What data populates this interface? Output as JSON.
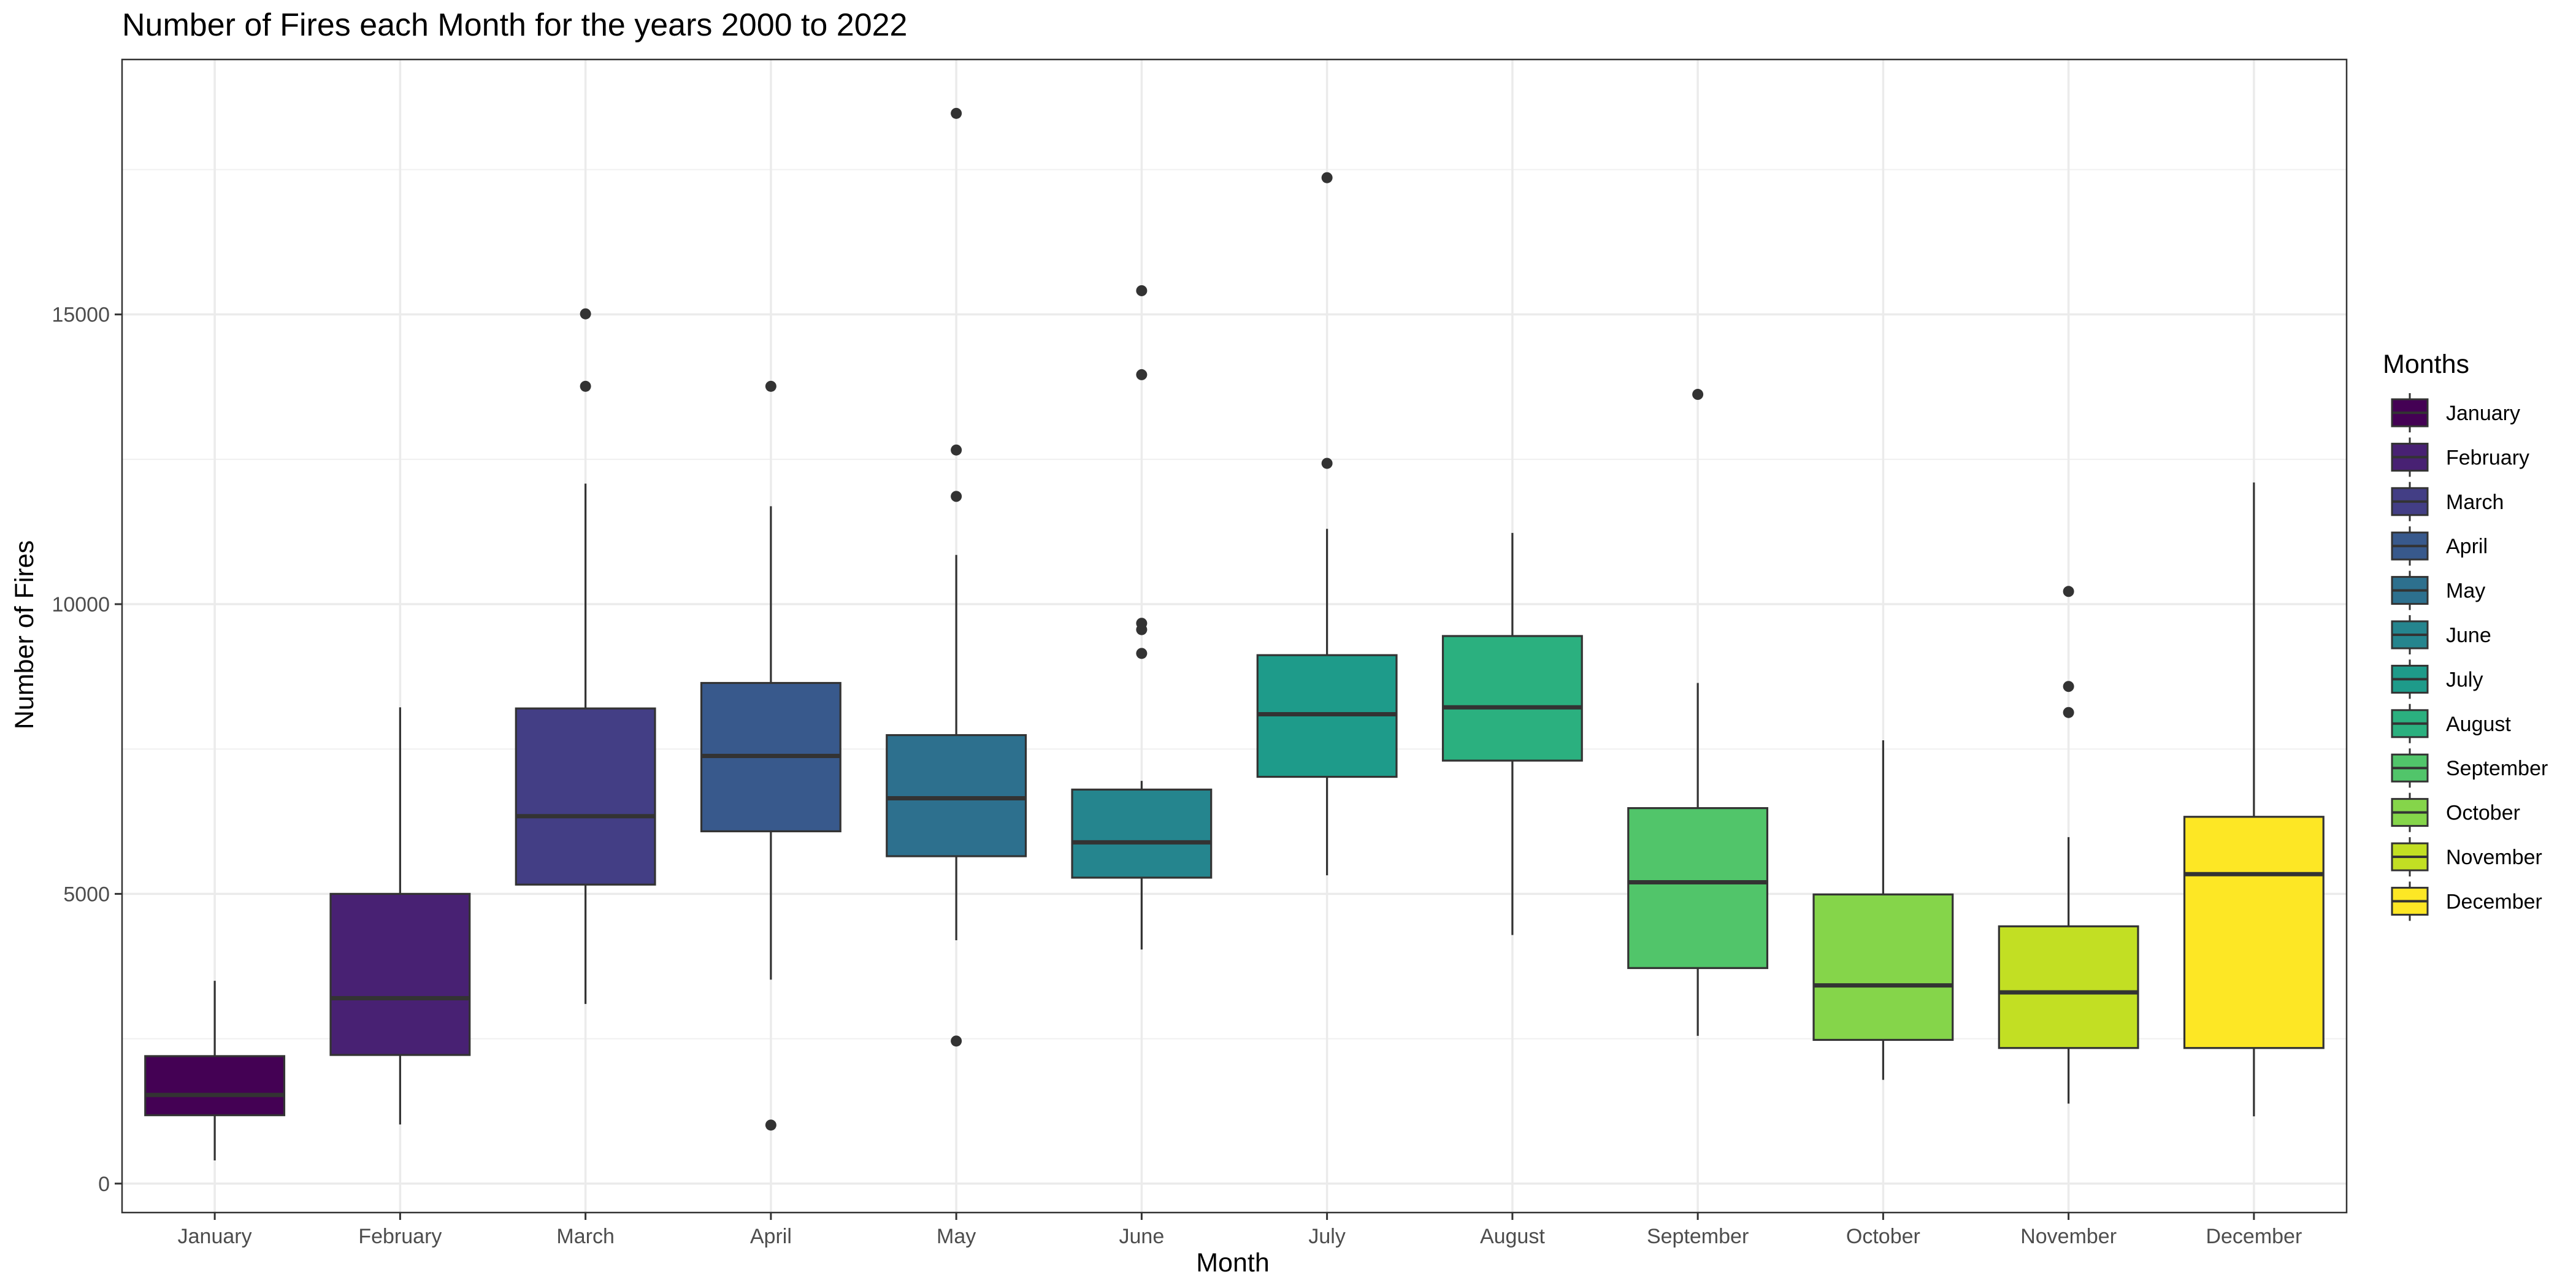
{
  "chart_data": {
    "type": "boxplot",
    "title": "Number of Fires each Month for the years 2000 to 2022",
    "xlabel": "Month",
    "ylabel": "Number of Fires",
    "ylim": [
      -500,
      19400
    ],
    "y_ticks": [
      0,
      5000,
      10000,
      15000
    ],
    "y_tick_labels": [
      "0",
      "5000",
      "10000",
      "15000"
    ],
    "grid": true,
    "legend": {
      "title": "Months",
      "placement": "right"
    },
    "categories": [
      "January",
      "February",
      "March",
      "April",
      "May",
      "June",
      "July",
      "August",
      "September",
      "October",
      "November",
      "December"
    ],
    "colors": [
      "#440154",
      "#482173",
      "#433E85",
      "#38598C",
      "#2D708E",
      "#25858E",
      "#1E9B8A",
      "#2BB07F",
      "#51C56A",
      "#85D54A",
      "#C2DF23",
      "#FDE725"
    ],
    "boxes": [
      {
        "category": "January",
        "whisker_low": 400,
        "q1": 1180,
        "median": 1530,
        "q3": 2200,
        "whisker_high": 3500,
        "outliers": []
      },
      {
        "category": "February",
        "whisker_low": 1020,
        "q1": 2220,
        "median": 3200,
        "q3": 5000,
        "whisker_high": 8220,
        "outliers": []
      },
      {
        "category": "March",
        "whisker_low": 3100,
        "q1": 5160,
        "median": 6340,
        "q3": 8200,
        "whisker_high": 12080,
        "outliers": [
          13760,
          15010
        ]
      },
      {
        "category": "April",
        "whisker_low": 3520,
        "q1": 6080,
        "median": 7380,
        "q3": 8640,
        "whisker_high": 11690,
        "outliers": [
          1010,
          13760
        ]
      },
      {
        "category": "May",
        "whisker_low": 4200,
        "q1": 5650,
        "median": 6650,
        "q3": 7740,
        "whisker_high": 10850,
        "outliers": [
          2460,
          11860,
          12660,
          18470
        ]
      },
      {
        "category": "June",
        "whisker_low": 4040,
        "q1": 5280,
        "median": 5890,
        "q3": 6800,
        "whisker_high": 6950,
        "outliers": [
          9150,
          9560,
          9670,
          13960,
          15410
        ]
      },
      {
        "category": "July",
        "whisker_low": 5320,
        "q1": 7020,
        "median": 8100,
        "q3": 9120,
        "whisker_high": 11300,
        "outliers": [
          12430,
          17360
        ]
      },
      {
        "category": "August",
        "whisker_low": 4290,
        "q1": 7300,
        "median": 8220,
        "q3": 9450,
        "whisker_high": 11230,
        "outliers": []
      },
      {
        "category": "September",
        "whisker_low": 2550,
        "q1": 3720,
        "median": 5200,
        "q3": 6480,
        "whisker_high": 8640,
        "outliers": [
          13620
        ]
      },
      {
        "category": "October",
        "whisker_low": 1790,
        "q1": 2480,
        "median": 3420,
        "q3": 4990,
        "whisker_high": 7650,
        "outliers": []
      },
      {
        "category": "November",
        "whisker_low": 1380,
        "q1": 2340,
        "median": 3300,
        "q3": 4440,
        "whisker_high": 5980,
        "outliers": [
          8130,
          8580,
          10220
        ]
      },
      {
        "category": "December",
        "whisker_low": 1160,
        "q1": 2340,
        "median": 5340,
        "q3": 6330,
        "whisker_high": 12100,
        "outliers": []
      }
    ]
  }
}
